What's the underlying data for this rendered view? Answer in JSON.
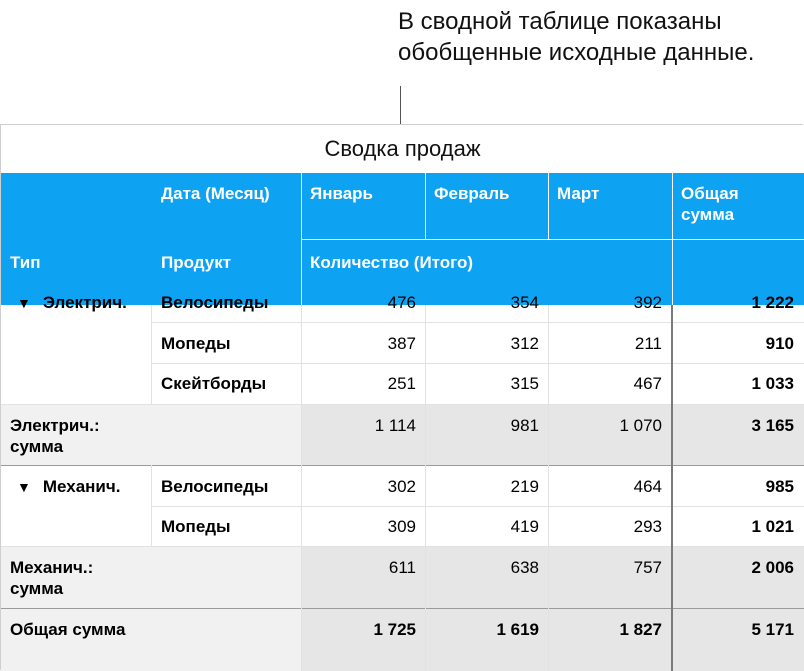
{
  "callout": "В сводной таблице показаны обобщенные исходные данные.",
  "table": {
    "title": "Сводка продаж",
    "header_row1": {
      "date_field": "Дата (Месяц)",
      "months": [
        "Январь",
        "Февраль",
        "Март"
      ],
      "total": "Общая сумма"
    },
    "header_row2": {
      "type": "Тип",
      "product": "Продукт",
      "measure": "Количество (Итого)"
    },
    "groups": [
      {
        "name": "Электрич.",
        "rows": [
          {
            "product": "Велосипеды",
            "values": [
              "476",
              "354",
              "392"
            ],
            "total": "1 222"
          },
          {
            "product": "Мопеды",
            "values": [
              "387",
              "312",
              "211"
            ],
            "total": "910"
          },
          {
            "product": "Скейтборды",
            "values": [
              "251",
              "315",
              "467"
            ],
            "total": "1 033"
          }
        ],
        "subtotal_label": "Электрич.: сумма",
        "subtotal": {
          "values": [
            "1 114",
            "981",
            "1 070"
          ],
          "total": "3 165"
        }
      },
      {
        "name": "Механич.",
        "rows": [
          {
            "product": "Велосипеды",
            "values": [
              "302",
              "219",
              "464"
            ],
            "total": "985"
          },
          {
            "product": "Мопеды",
            "values": [
              "309",
              "419",
              "293"
            ],
            "total": "1 021"
          }
        ],
        "subtotal_label": "Механич.: сумма",
        "subtotal": {
          "values": [
            "611",
            "638",
            "757"
          ],
          "total": "2 006"
        }
      }
    ],
    "grand_total": {
      "label": "Общая сумма",
      "values": [
        "1 725",
        "1 619",
        "1 827"
      ],
      "total": "5 171"
    }
  }
}
